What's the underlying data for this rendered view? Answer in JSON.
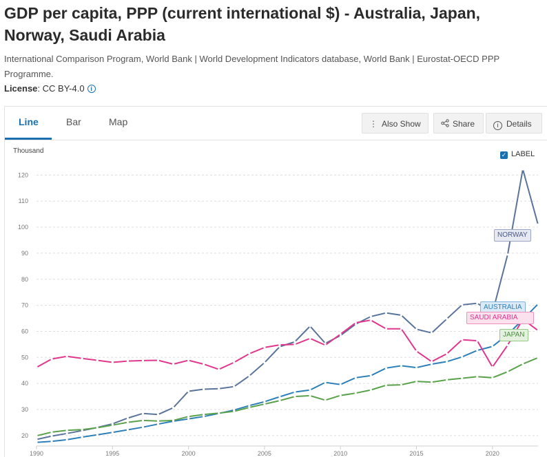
{
  "header": {
    "title": "GDP per capita, PPP (current international $) - Australia, Japan, Norway, Saudi Arabia",
    "source": "International Comparison Program, World Bank | World Development Indicators database, World Bank | Eurostat-OECD PPP Programme.",
    "license_label": "License",
    "license_value": ": CC BY-4.0"
  },
  "tabs": [
    {
      "label": "Line",
      "active": true
    },
    {
      "label": "Bar",
      "active": false
    },
    {
      "label": "Map",
      "active": false
    }
  ],
  "toolbar": {
    "also_show_label": "Also Show",
    "share_label": "Share",
    "details_label": "Details"
  },
  "label_toggle": {
    "label": "LABEL",
    "checked": true
  },
  "icons": {
    "also_show": "vertical-ellipsis-icon",
    "share": "share-icon",
    "details": "info-icon",
    "license_info": "info-icon"
  },
  "colors": {
    "accent": "#1a6fb0",
    "norway": "#59739a",
    "australia": "#2c7fb8",
    "saudi_arabia": "#e0368b",
    "japan": "#5aa14b"
  },
  "chart_data": {
    "type": "line",
    "ylabel": "Thousand",
    "xlim": [
      1990,
      2023
    ],
    "ylim": [
      16,
      123
    ],
    "yticks": [
      20,
      30,
      40,
      50,
      60,
      70,
      80,
      90,
      100,
      110,
      120
    ],
    "xticks": [
      1990,
      1995,
      2000,
      2005,
      2010,
      2015,
      2020
    ],
    "x": [
      1990,
      1991,
      1992,
      1993,
      1994,
      1995,
      1996,
      1997,
      1998,
      1999,
      2000,
      2001,
      2002,
      2003,
      2004,
      2005,
      2006,
      2007,
      2008,
      2009,
      2010,
      2011,
      2012,
      2013,
      2014,
      2015,
      2016,
      2017,
      2018,
      2019,
      2020,
      2021,
      2022,
      2023
    ],
    "series": [
      {
        "name": "NORWAY",
        "color": "#59739a",
        "values": [
          18.5,
          19.8,
          20.8,
          21.9,
          23.1,
          24.5,
          26.7,
          28.5,
          28.1,
          30.7,
          37.0,
          37.8,
          38.0,
          38.8,
          42.9,
          48.0,
          54.1,
          56.0,
          62.0,
          55.4,
          58.4,
          62.8,
          65.7,
          67.1,
          66.2,
          60.8,
          59.4,
          64.8,
          70.2,
          70.8,
          67.1,
          89.5,
          122.2,
          101.0
        ]
      },
      {
        "name": "AUSTRALIA",
        "color": "#2c7fb8",
        "values": [
          17.4,
          17.8,
          18.4,
          19.4,
          20.3,
          21.2,
          22.2,
          23.2,
          24.4,
          25.5,
          26.4,
          27.3,
          28.5,
          29.8,
          31.5,
          33.0,
          34.9,
          36.7,
          37.5,
          40.4,
          39.6,
          42.2,
          43.0,
          45.9,
          46.8,
          46.1,
          47.4,
          48.4,
          50.2,
          52.7,
          54.2,
          58.8,
          64.5,
          70.5
        ]
      },
      {
        "name": "SAUDI ARABIA",
        "color": "#e0368b",
        "values": [
          46.2,
          49.4,
          50.4,
          49.6,
          48.9,
          48.1,
          48.6,
          48.8,
          48.9,
          47.4,
          48.9,
          47.4,
          45.4,
          48.1,
          51.4,
          53.8,
          54.8,
          55.0,
          57.3,
          54.7,
          58.9,
          63.3,
          64.3,
          61.0,
          61.0,
          52.4,
          48.4,
          51.4,
          56.8,
          56.4,
          46.3,
          54.7,
          64.7,
          60.3
        ]
      },
      {
        "name": "JAPAN",
        "color": "#5aa14b",
        "values": [
          19.9,
          21.3,
          22.0,
          22.3,
          23.0,
          24.0,
          25.1,
          25.8,
          25.6,
          25.8,
          27.3,
          28.1,
          28.6,
          29.3,
          30.8,
          32.1,
          33.4,
          35.0,
          35.3,
          33.6,
          35.4,
          36.3,
          37.5,
          39.3,
          39.5,
          40.8,
          40.5,
          41.4,
          42.0,
          42.6,
          42.2,
          44.5,
          47.5,
          49.9
        ]
      }
    ],
    "legend": "inline labels at line ends",
    "grid": "horizontal dashed"
  }
}
